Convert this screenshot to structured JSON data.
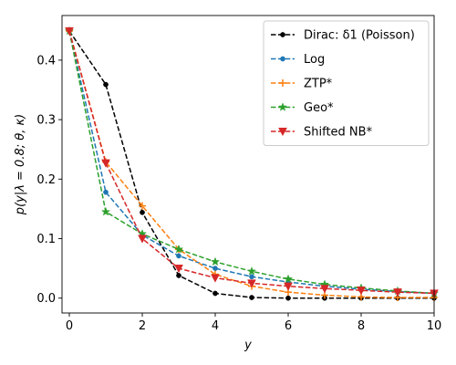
{
  "chart_data": {
    "type": "line",
    "title": "",
    "xlabel": "y",
    "ylabel": "p(y|λ = 0.8; θ, κ)",
    "xlim": [
      -0.2,
      10
    ],
    "ylim": [
      -0.025,
      0.475
    ],
    "xticks": [
      0,
      2,
      4,
      6,
      8,
      10
    ],
    "yticks": [
      0.0,
      0.1,
      0.2,
      0.3,
      0.4
    ],
    "ytick_labels": [
      "0.0",
      "0.1",
      "0.2",
      "0.3",
      "0.4"
    ],
    "grid": false,
    "legend_position": "top-right",
    "x": [
      0,
      1,
      2,
      3,
      4,
      5,
      6,
      7,
      8,
      9,
      10
    ],
    "series": [
      {
        "name": "Dirac: δ1 (Poisson)",
        "color": "#000000",
        "marker": "circle",
        "values": [
          0.449,
          0.359,
          0.144,
          0.038,
          0.008,
          0.001,
          0.0,
          0.0,
          0.0,
          0.0,
          0.0
        ]
      },
      {
        "name": "Log",
        "color": "#1f77b4",
        "marker": "circle",
        "values": [
          0.449,
          0.178,
          0.106,
          0.071,
          0.05,
          0.036,
          0.027,
          0.02,
          0.015,
          0.011,
          0.008
        ]
      },
      {
        "name": "ZTP*",
        "color": "#ff7f0e",
        "marker": "plus",
        "values": [
          0.449,
          0.229,
          0.155,
          0.082,
          0.04,
          0.02,
          0.01,
          0.005,
          0.002,
          0.001,
          0.001
        ]
      },
      {
        "name": "Geo*",
        "color": "#2ca02c",
        "marker": "star",
        "values": [
          0.449,
          0.145,
          0.108,
          0.082,
          0.061,
          0.045,
          0.032,
          0.023,
          0.017,
          0.012,
          0.008
        ]
      },
      {
        "name": "Shifted NB*",
        "color": "#d62728",
        "marker": "triangle-down",
        "values": [
          0.449,
          0.227,
          0.1,
          0.05,
          0.034,
          0.025,
          0.02,
          0.016,
          0.013,
          0.01,
          0.008
        ]
      }
    ]
  }
}
